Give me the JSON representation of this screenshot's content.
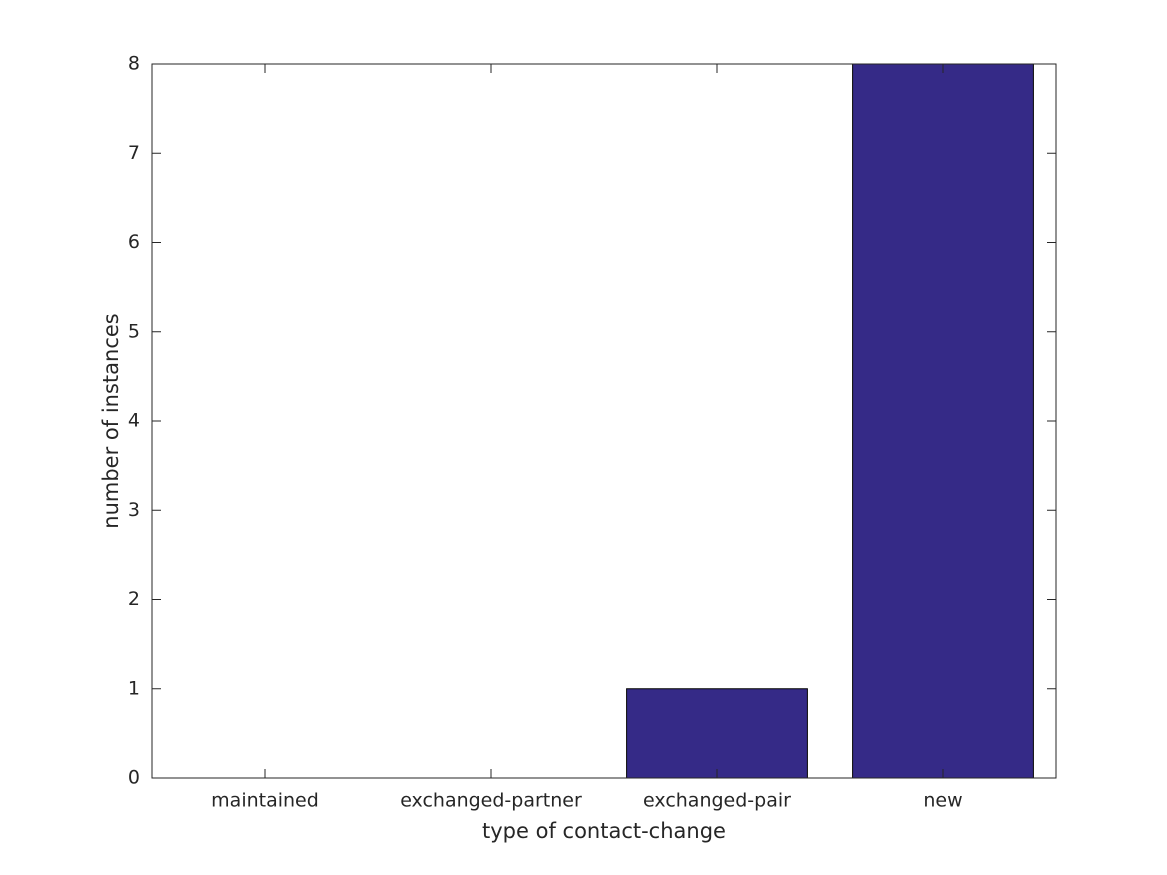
{
  "chart_data": {
    "type": "bar",
    "xlabel": "type of contact-change",
    "ylabel": "number of instances",
    "categories": [
      "maintained",
      "exchanged-partner",
      "exchanged-pair",
      "new"
    ],
    "values": [
      0,
      0,
      1,
      8
    ],
    "color": "#352a87",
    "ylim": [
      0,
      8
    ],
    "yticks": [
      0,
      1,
      2,
      3,
      4,
      5,
      6,
      7,
      8
    ],
    "grid": false
  }
}
